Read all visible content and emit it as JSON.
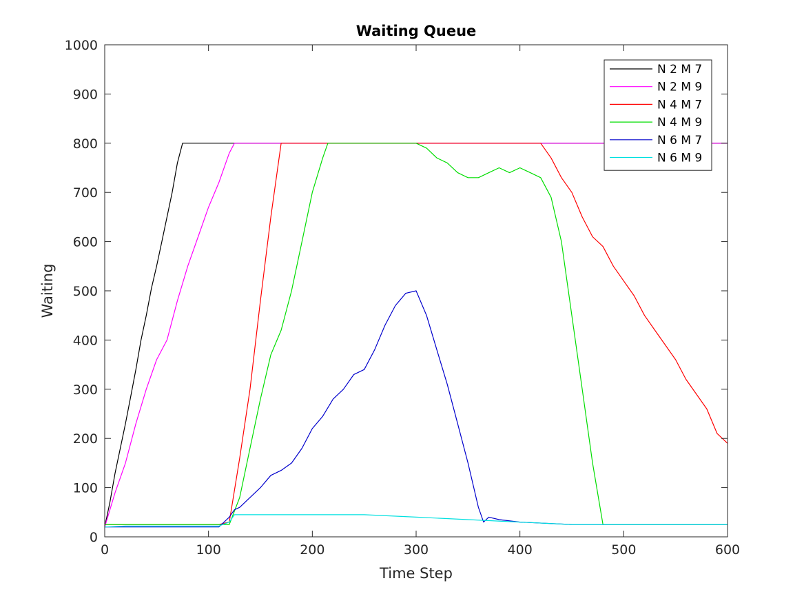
{
  "chart_data": {
    "type": "line",
    "title": "Waiting Queue",
    "xlabel": "Time Step",
    "ylabel": "Waiting",
    "xlim": [
      0,
      600
    ],
    "ylim": [
      0,
      1000
    ],
    "xticks": [
      0,
      100,
      200,
      300,
      400,
      500,
      600
    ],
    "yticks": [
      0,
      100,
      200,
      300,
      400,
      500,
      600,
      700,
      800,
      900,
      1000
    ],
    "grid": false,
    "legend_position": "top-right",
    "series": [
      {
        "name": "N 2 M 7",
        "color": "#000000",
        "x": [
          0,
          5,
          10,
          15,
          20,
          25,
          30,
          35,
          40,
          45,
          50,
          55,
          60,
          65,
          70,
          75,
          80,
          100,
          120,
          150,
          200,
          300,
          400,
          500,
          600
        ],
        "y": [
          20,
          70,
          130,
          180,
          230,
          285,
          340,
          400,
          450,
          505,
          550,
          600,
          650,
          700,
          760,
          800,
          800,
          800,
          800,
          800,
          800,
          800,
          800,
          800,
          800
        ]
      },
      {
        "name": "N 2 M 9",
        "color": "#ff00ff",
        "x": [
          0,
          10,
          20,
          30,
          40,
          50,
          60,
          70,
          80,
          90,
          100,
          110,
          120,
          125,
          150,
          200,
          300,
          400,
          430,
          450,
          500,
          600
        ],
        "y": [
          20,
          90,
          150,
          230,
          300,
          360,
          400,
          480,
          550,
          610,
          670,
          720,
          780,
          800,
          800,
          800,
          800,
          800,
          800,
          800,
          800,
          800
        ]
      },
      {
        "name": "N 4 M 7",
        "color": "#ff0000",
        "x": [
          0,
          20,
          40,
          60,
          80,
          100,
          110,
          120,
          130,
          140,
          150,
          160,
          170,
          200,
          300,
          400,
          420,
          430,
          440,
          450,
          460,
          470,
          480,
          490,
          500,
          510,
          520,
          530,
          540,
          550,
          560,
          570,
          580,
          590,
          600
        ],
        "y": [
          25,
          25,
          25,
          25,
          25,
          25,
          25,
          30,
          160,
          300,
          480,
          650,
          800,
          800,
          800,
          800,
          800,
          770,
          730,
          700,
          650,
          610,
          590,
          550,
          520,
          490,
          450,
          420,
          390,
          360,
          320,
          290,
          260,
          210,
          190
        ]
      },
      {
        "name": "N 4 M 9",
        "color": "#00dd00",
        "x": [
          0,
          20,
          40,
          60,
          80,
          100,
          110,
          120,
          130,
          140,
          150,
          160,
          170,
          180,
          190,
          200,
          210,
          215,
          250,
          300,
          310,
          320,
          330,
          340,
          350,
          360,
          370,
          380,
          390,
          400,
          410,
          420,
          430,
          440,
          450,
          460,
          470,
          480,
          500,
          550,
          600
        ],
        "y": [
          25,
          25,
          25,
          25,
          25,
          25,
          25,
          25,
          80,
          180,
          280,
          370,
          420,
          500,
          600,
          700,
          770,
          800,
          800,
          800,
          790,
          770,
          760,
          740,
          730,
          730,
          740,
          750,
          740,
          750,
          740,
          730,
          690,
          600,
          450,
          300,
          150,
          25,
          25,
          25,
          25
        ]
      },
      {
        "name": "N 6 M 7",
        "color": "#0000cc",
        "x": [
          0,
          20,
          40,
          60,
          80,
          100,
          110,
          120,
          125,
          130,
          140,
          150,
          160,
          170,
          180,
          190,
          200,
          210,
          220,
          230,
          240,
          250,
          260,
          270,
          280,
          290,
          300,
          310,
          320,
          330,
          340,
          350,
          360,
          365,
          370,
          380,
          400,
          450,
          500,
          600
        ],
        "y": [
          20,
          20,
          20,
          20,
          20,
          20,
          20,
          40,
          55,
          60,
          80,
          100,
          125,
          135,
          150,
          180,
          220,
          245,
          280,
          300,
          330,
          340,
          380,
          430,
          470,
          495,
          500,
          450,
          380,
          310,
          230,
          150,
          60,
          30,
          40,
          35,
          30,
          25,
          25,
          25
        ]
      },
      {
        "name": "N 6 M 9",
        "color": "#00e0e0",
        "x": [
          0,
          20,
          40,
          60,
          80,
          100,
          110,
          120,
          125,
          150,
          200,
          250,
          300,
          350,
          400,
          450,
          500,
          550,
          600
        ],
        "y": [
          20,
          22,
          22,
          22,
          22,
          22,
          22,
          30,
          45,
          45,
          45,
          45,
          40,
          35,
          30,
          25,
          25,
          25,
          25
        ]
      }
    ]
  }
}
